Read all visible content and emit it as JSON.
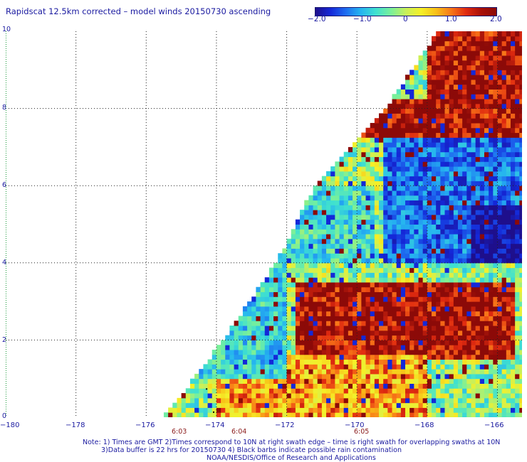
{
  "title": "Rapidscat 12.5km corrected – model winds 20150730 ascending",
  "colorbar": {
    "ticks": [
      "−2.0",
      "−1.0",
      "0",
      "1.0",
      "2.0"
    ],
    "values": [
      -2.0,
      -1.0,
      0,
      1.0,
      2.0
    ]
  },
  "chart_data": {
    "type": "heatmap",
    "title": "Rapidscat 12.5km corrected – model winds 20150730 ascending",
    "xlabel": "",
    "ylabel": "",
    "xlim": [
      -180,
      -165.3
    ],
    "ylim": [
      0,
      10
    ],
    "x_ticks": [
      "−180",
      "−178",
      "−176",
      "−174",
      "−172",
      "−170",
      "−168",
      "−166"
    ],
    "y_ticks": [
      "0",
      "2",
      "4",
      "6",
      "8",
      "10"
    ],
    "grid": true,
    "colorscale": "rainbow, −2.0 (dark blue) to 2.0 (dark red)",
    "value_range": [
      -2.0,
      2.0
    ],
    "swath_left_edge": [
      [
        -175.5,
        0
      ],
      [
        -173.8,
        2
      ],
      [
        -172.3,
        4
      ],
      [
        -171.2,
        6
      ],
      [
        -169.2,
        8
      ],
      [
        -167.7,
        10
      ]
    ],
    "times": [
      {
        "label": "6:03",
        "lon": -174.9
      },
      {
        "label": "6:04",
        "lon": -173.3
      },
      {
        "label": "6:05",
        "lon": -169.8
      }
    ],
    "regions": [
      {
        "lon": [
          -168.0,
          -165.3
        ],
        "lat": [
          8.0,
          10.0
        ],
        "value": 2.0
      },
      {
        "lon": [
          -170.0,
          -165.3
        ],
        "lat": [
          7.3,
          8.3
        ],
        "value": 2.0
      },
      {
        "lon": [
          -169.2,
          -165.3
        ],
        "lat": [
          4.0,
          7.3
        ],
        "value": -1.2
      },
      {
        "lon": [
          -166.8,
          -165.3
        ],
        "lat": [
          4.0,
          5.5
        ],
        "value": -2.0
      },
      {
        "lon": [
          -172.5,
          -169.5
        ],
        "lat": [
          4.0,
          6.0
        ],
        "value": -0.4
      },
      {
        "lon": [
          -171.8,
          -165.5
        ],
        "lat": [
          1.5,
          3.5
        ],
        "value": 2.0
      },
      {
        "lon": [
          -174.0,
          -168.0
        ],
        "lat": [
          0.0,
          1.6
        ],
        "value": 1.2
      },
      {
        "lon": [
          -174.5,
          -172.0
        ],
        "lat": [
          1.0,
          4.0
        ],
        "value": -0.5
      }
    ]
  },
  "notes": [
    "Note: 1) Times are GMT 2)Times correspond to 10N at right swath edge – time is right swath for overlapping swaths at 10N",
    "3)Data buffer is 22 hrs for 20150730 4) Black barbs indicate possible rain contamination",
    "NOAA/NESDIS/Office of Research and Applications"
  ]
}
